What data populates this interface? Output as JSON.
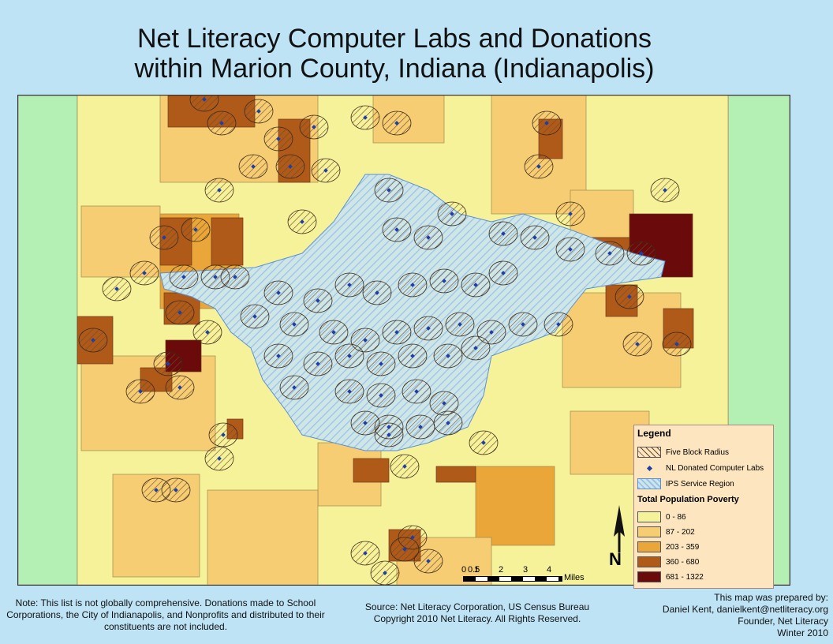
{
  "title_line1": "Net Literacy Computer Labs and Donations",
  "title_line2": "within Marion County, Indiana (Indianapolis)",
  "legend": {
    "title": "Legend",
    "five_block": "Five Block Radius",
    "labs": "NL Donated Computer Labs",
    "ips": "IPS Service Region",
    "poverty_title": "Total Population Poverty",
    "classes": [
      {
        "label": "0 - 86",
        "color": "#f6f29a"
      },
      {
        "label": "87 - 202",
        "color": "#f6cd72"
      },
      {
        "label": "203 - 359",
        "color": "#eaa638"
      },
      {
        "label": "360 - 680",
        "color": "#b05a1a"
      },
      {
        "label": "681 - 1322",
        "color": "#6b0a0a"
      }
    ]
  },
  "scale": {
    "labels": [
      "0",
      "0.5",
      "1",
      "2",
      "3",
      "4"
    ],
    "unit": "Miles"
  },
  "north_label": "N",
  "note": "Note: This list is not globally comprehensive.  Donations made to School Corporations, the City of Indianapolis, and Nonprofits and distributed to their constituents are not included.",
  "source_line1": "Source: Net Literacy Corporation, US Census Bureau",
  "source_line2": "Copyright 2010 Net Literacy.  All Rights Reserved.",
  "credit": [
    "This map was prepared by:",
    "Daniel Kent, danielkent@netliteracy.org",
    "Founder, Net Literacy",
    "Winter 2010"
  ]
}
